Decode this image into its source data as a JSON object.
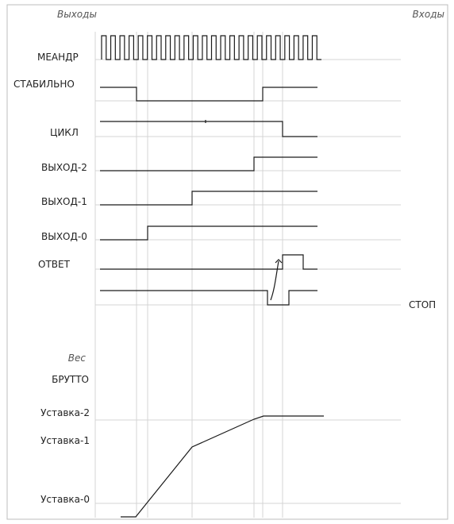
{
  "header": {
    "outputs_label": "Выходы",
    "inputs_label": "Входы"
  },
  "signals": {
    "meander": "МЕАНДР",
    "stable": "СТАБИЛЬНО",
    "cycle": "ЦИКЛ",
    "output2": "ВЫХОД-2",
    "output1": "ВЫХОД-1",
    "output0": "ВЫХОД-0",
    "answer": "ОТВЕТ",
    "stop": "СТОП"
  },
  "weight": {
    "axis_label": "Вес",
    "gross": "БРУТТО",
    "setpoint2": "Уставка-2",
    "setpoint1": "Уставка-1",
    "setpoint0": "Уставка-0"
  },
  "colors": {
    "signal": "#1a1a1a",
    "reference": "#d4d4d4",
    "frame": "#bdbdbd"
  }
}
